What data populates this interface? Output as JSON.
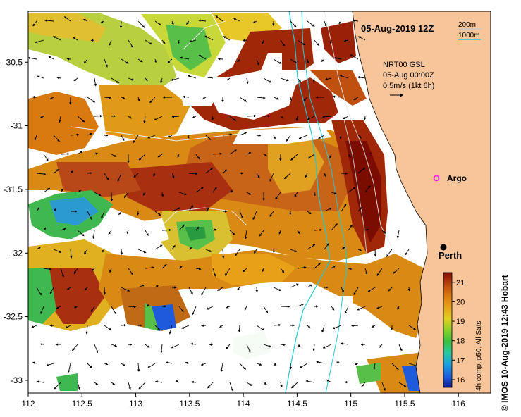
{
  "title": "05-Aug-2019 12Z",
  "isobath_legend": [
    {
      "label": "200m",
      "color": "#c8c8c8"
    },
    {
      "label": "1000m",
      "color": "#22c8d8"
    }
  ],
  "current_info": {
    "line1": "NRT00 GSL",
    "line2": "05-Aug 00:00Z",
    "line3": "0.5m/s (1kt 6h)"
  },
  "markers": {
    "argo": {
      "label": "Argo",
      "lon": 115.78,
      "lat": -31.44,
      "color": "#e020e0"
    },
    "perth": {
      "label": "Perth",
      "lon": 115.86,
      "lat": -31.95,
      "color": "#000000"
    }
  },
  "axes": {
    "x_ticks": [
      "112",
      "112.5",
      "113",
      "113.5",
      "114",
      "114.5",
      "115",
      "115.5",
      "116"
    ],
    "y_ticks": [
      "-30.5",
      "-31",
      "-31.5",
      "-32",
      "-32.5",
      "-33"
    ],
    "lon_range": [
      112.0,
      116.3
    ],
    "lat_range": [
      -33.1,
      -30.1
    ]
  },
  "colorbar": {
    "label": "4h comp, p50, All Sats",
    "ticks": [
      "16",
      "17",
      "18",
      "19",
      "20",
      "21"
    ],
    "range": [
      15.6,
      21.5
    ],
    "colors": [
      "#0a1a8c",
      "#1e5adc",
      "#1aa0e0",
      "#2ac8a0",
      "#38c040",
      "#8cd028",
      "#e0d020",
      "#e8a018",
      "#d87a10",
      "#c05010",
      "#a02808",
      "#7a0c00"
    ]
  },
  "copyright": "© IMOS 10-Aug-2019 12:43 Hobart",
  "colors": {
    "land": "#f8c49a",
    "coast": "#000000"
  }
}
